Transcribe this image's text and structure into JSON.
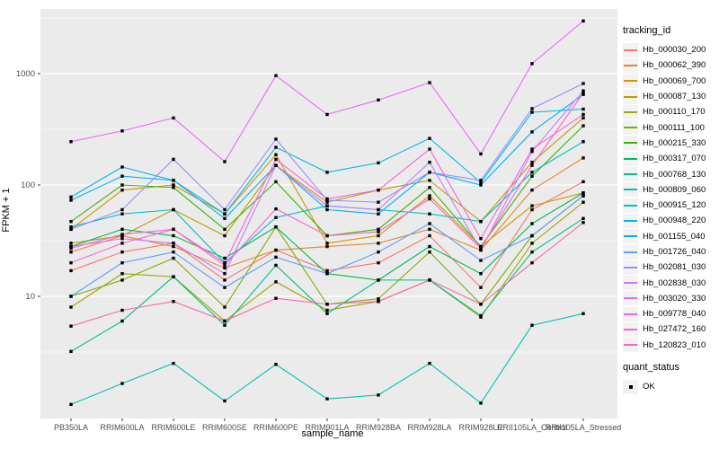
{
  "figure": {
    "bg": "#FFFFFF",
    "panel_bg": "#EBEBEB",
    "grid_color": "#FFFFFF",
    "tick_color": "#333333",
    "tick_label_color": "#4D4D4D",
    "point_color": "#000000"
  },
  "legend": {
    "tracking_title": "tracking_id",
    "quant_title": "quant_status",
    "quant_value": "OK"
  },
  "chart_data": {
    "type": "line",
    "title": "",
    "xlabel": "sample_name",
    "ylabel": "FPKM + 1",
    "y_scale": "log10",
    "y_ticks": [
      10,
      100,
      1000
    ],
    "ylim": [
      0.85,
      4600
    ],
    "grid": true,
    "legend_position": "right",
    "marker": "black-point",
    "categories": [
      "PB350LA",
      "RRIM600LA",
      "RRIM600LE",
      "RRIM600SE",
      "RRIM600PE",
      "RRIM901LA",
      "RRIM928BA",
      "RRIM928LA",
      "RRIM928LE",
      "RRII105LA_Control",
      "RRII105LA_Stressed"
    ],
    "series": [
      {
        "name": "Hb_000030_200",
        "color": "#F8766D",
        "values": [
          17,
          25,
          30,
          14,
          26,
          17,
          20,
          35,
          12,
          60,
          107
        ]
      },
      {
        "name": "Hb_000062_390",
        "color": "#E9842C",
        "values": [
          25,
          35,
          28,
          18,
          26,
          28,
          30,
          40,
          26,
          90,
          175
        ]
      },
      {
        "name": "Hb_000069_700",
        "color": "#D89000",
        "values": [
          40,
          90,
          100,
          55,
          187,
          30,
          35,
          80,
          28,
          65,
          85
        ]
      },
      {
        "name": "Hb_000087_130",
        "color": "#C09B00",
        "values": [
          30,
          35,
          60,
          35,
          150,
          70,
          90,
          110,
          47,
          160,
          400
        ]
      },
      {
        "name": "Hb_000110_170",
        "color": "#A3A500",
        "values": [
          8,
          16,
          15,
          6,
          13.5,
          7.5,
          9,
          14,
          6.5,
          30,
          70
        ]
      },
      {
        "name": "Hb_000111_100",
        "color": "#7CAE00",
        "values": [
          10,
          14,
          22,
          8,
          42,
          8.5,
          9.5,
          25,
          8.5,
          35,
          80
        ]
      },
      {
        "name": "Hb_000215_330",
        "color": "#39B600",
        "values": [
          47,
          100,
          95,
          40,
          107,
          35,
          40,
          95,
          28,
          120,
          340
        ]
      },
      {
        "name": "Hb_000317_070",
        "color": "#00BB4E",
        "values": [
          28,
          40,
          35,
          22,
          42,
          16,
          14,
          28,
          16,
          45,
          85
        ]
      },
      {
        "name": "Hb_000768_130",
        "color": "#00C087",
        "values": [
          3.2,
          6,
          15,
          5.5,
          19,
          7,
          14,
          14,
          6.7,
          25,
          50
        ]
      },
      {
        "name": "Hb_000809_060",
        "color": "#00C0AF",
        "values": [
          1.07,
          1.65,
          2.5,
          1.15,
          2.45,
          1.2,
          1.3,
          2.5,
          1.1,
          5.5,
          7
        ]
      },
      {
        "name": "Hb_000915_120",
        "color": "#00BFC4",
        "values": [
          42,
          55,
          60,
          20,
          51,
          65,
          60,
          55,
          47,
          130,
          245
        ]
      },
      {
        "name": "Hb_000948_220",
        "color": "#00BAE0",
        "values": [
          78,
          145,
          110,
          55,
          218,
          130,
          158,
          262,
          105,
          450,
          480
        ]
      },
      {
        "name": "Hb_001155_040",
        "color": "#00B0F6",
        "values": [
          73,
          120,
          110,
          50,
          150,
          60,
          55,
          130,
          100,
          300,
          650
        ]
      },
      {
        "name": "Hb_001726_040",
        "color": "#619CFF",
        "values": [
          10,
          20,
          25,
          12,
          22.5,
          16,
          25,
          45,
          21,
          35,
          80
        ]
      },
      {
        "name": "Hb_002081_030",
        "color": "#9590FF",
        "values": [
          40,
          60,
          170,
          60,
          258,
          73,
          70,
          130,
          110,
          485,
          815
        ]
      },
      {
        "name": "Hb_002838_030",
        "color": "#C77CFF",
        "values": [
          28,
          33,
          30,
          16,
          150,
          65,
          60,
          160,
          26,
          200,
          700
        ]
      },
      {
        "name": "Hb_003020_330",
        "color": "#E76BF3",
        "values": [
          245,
          306,
          400,
          162,
          960,
          430,
          580,
          830,
          190,
          1230,
          2970
        ]
      },
      {
        "name": "Hb_009778_040",
        "color": "#FA62DB",
        "values": [
          27,
          36,
          40,
          20,
          170,
          75,
          90,
          210,
          33,
          210,
          430
        ]
      },
      {
        "name": "Hb_027472_160",
        "color": "#FF61CC",
        "values": [
          20,
          30,
          40,
          19,
          61,
          35,
          38,
          75,
          27,
          150,
          670
        ]
      },
      {
        "name": "Hb_120823_010",
        "color": "#FF65AE",
        "values": [
          5.4,
          7.5,
          9,
          6,
          9.6,
          8.5,
          9,
          14,
          8.5,
          20,
          46
        ]
      }
    ]
  }
}
